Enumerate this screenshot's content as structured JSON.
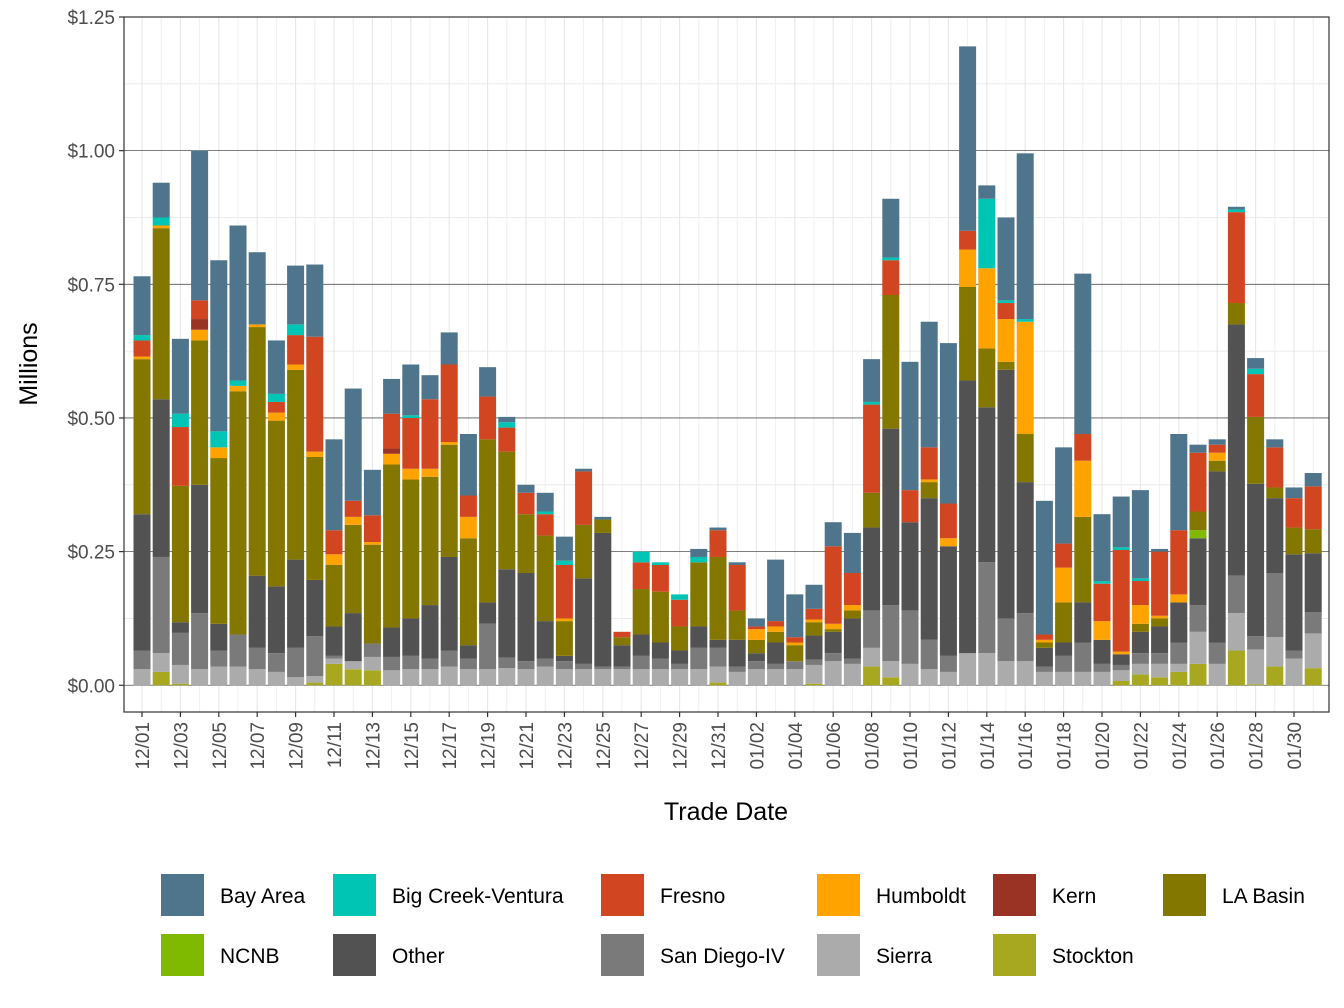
{
  "chart_data": {
    "type": "bar",
    "stacked": true,
    "title": "",
    "xlabel": "Trade Date",
    "ylabel": "Millions",
    "ylim": [
      -0.05,
      1.25
    ],
    "y_ticks": [
      0,
      0.25,
      0.5,
      0.75,
      1.0,
      1.25
    ],
    "y_tick_labels": [
      "$0.00",
      "$0.25",
      "$0.50",
      "$0.75",
      "$1.00",
      "$1.25"
    ],
    "x_tick_labels": [
      "12/01",
      "12/03",
      "12/05",
      "12/07",
      "12/09",
      "12/11",
      "12/13",
      "12/15",
      "12/17",
      "12/19",
      "12/21",
      "12/23",
      "12/25",
      "12/27",
      "12/29",
      "12/31",
      "01/02",
      "01/04",
      "01/06",
      "01/08",
      "01/10",
      "01/12",
      "01/14",
      "01/16",
      "01/18",
      "01/20",
      "01/22",
      "01/24",
      "01/26",
      "01/28",
      "01/30"
    ],
    "grid": true,
    "legend_position": "bottom",
    "categories": [
      "12/01",
      "12/02",
      "12/03",
      "12/04",
      "12/05",
      "12/06",
      "12/07",
      "12/08",
      "12/09",
      "12/10",
      "12/11",
      "12/12",
      "12/13",
      "12/14",
      "12/15",
      "12/16",
      "12/17",
      "12/18",
      "12/19",
      "12/20",
      "12/21",
      "12/22",
      "12/23",
      "12/24",
      "12/25",
      "12/26",
      "12/27",
      "12/28",
      "12/29",
      "12/30",
      "12/31",
      "01/01",
      "01/02",
      "01/03",
      "01/04",
      "01/05",
      "01/06",
      "01/07",
      "01/08",
      "01/09",
      "01/10",
      "01/11",
      "01/12",
      "01/13",
      "01/14",
      "01/15",
      "01/16",
      "01/17",
      "01/18",
      "01/19",
      "01/20",
      "01/21",
      "01/22",
      "01/23",
      "01/24",
      "01/25",
      "01/26",
      "01/27",
      "01/28",
      "01/29",
      "01/30",
      "01/31"
    ],
    "series": [
      {
        "name": "Stockton",
        "color": "#A8A820",
        "values": [
          0,
          0.025,
          0.003,
          0,
          0,
          0,
          0,
          0,
          0,
          0.005,
          0.04,
          0.03,
          0.028,
          0,
          0,
          0,
          0,
          0,
          0,
          0,
          0,
          0,
          0,
          0,
          0,
          0,
          0,
          0,
          0,
          0,
          0.005,
          0,
          0,
          0,
          0,
          0.003,
          0,
          0,
          0.035,
          0.015,
          0,
          0,
          0,
          0,
          0,
          0,
          0,
          0,
          0,
          0,
          0,
          0.008,
          0.02,
          0.015,
          0.025,
          0.04,
          0,
          0.065,
          0.002,
          0.035,
          0,
          0.032
        ]
      },
      {
        "name": "Sierra",
        "color": "#ABABAB",
        "values": [
          0.03,
          0.035,
          0.035,
          0.03,
          0.035,
          0.035,
          0.03,
          0.025,
          0.015,
          0.012,
          0.01,
          0.015,
          0.025,
          0.028,
          0.03,
          0.03,
          0.035,
          0.03,
          0.03,
          0.032,
          0.03,
          0.035,
          0.03,
          0.03,
          0.03,
          0.03,
          0.03,
          0.03,
          0.03,
          0.03,
          0.03,
          0.025,
          0.03,
          0.03,
          0.03,
          0.035,
          0.045,
          0.04,
          0.035,
          0.03,
          0.04,
          0.03,
          0.025,
          0.06,
          0.06,
          0.045,
          0.045,
          0.025,
          0.025,
          0.025,
          0.025,
          0.02,
          0.02,
          0.025,
          0.015,
          0.06,
          0.04,
          0.07,
          0.065,
          0.055,
          0.05,
          0.065
        ]
      },
      {
        "name": "San Diego-IV",
        "color": "#7A7A7A",
        "values": [
          0.035,
          0.18,
          0.06,
          0.105,
          0.03,
          0.06,
          0.04,
          0.035,
          0.055,
          0.075,
          0.005,
          0,
          0.025,
          0.025,
          0.025,
          0.02,
          0.03,
          0.02,
          0.085,
          0.02,
          0.015,
          0.015,
          0.015,
          0.01,
          0.005,
          0.005,
          0.025,
          0.02,
          0.01,
          0.04,
          0.035,
          0.01,
          0.015,
          0.01,
          0.015,
          0.01,
          0.015,
          0.01,
          0.07,
          0.105,
          0.1,
          0.055,
          0.03,
          0,
          0.17,
          0.08,
          0.09,
          0.01,
          0.03,
          0.055,
          0.015,
          0.01,
          0.02,
          0.02,
          0.04,
          0.05,
          0.04,
          0.07,
          0.025,
          0.12,
          0.015,
          0.04
        ]
      },
      {
        "name": "Other",
        "color": "#525252",
        "values": [
          0.255,
          0.295,
          0.02,
          0.24,
          0.05,
          0,
          0.135,
          0.125,
          0.165,
          0.105,
          0.055,
          0.09,
          0.0,
          0.055,
          0.07,
          0.1,
          0.175,
          0.025,
          0.04,
          0.165,
          0.165,
          0.07,
          0.01,
          0.16,
          0.25,
          0.04,
          0.04,
          0.03,
          0.025,
          0.04,
          0.015,
          0.05,
          0.015,
          0.04,
          0.0,
          0.045,
          0.04,
          0.075,
          0.155,
          0.33,
          0.165,
          0.265,
          0.205,
          0.51,
          0.29,
          0.465,
          0.245,
          0.035,
          0.025,
          0.075,
          0.045,
          0.02,
          0.04,
          0.05,
          0.075,
          0.125,
          0.32,
          0.47,
          0.285,
          0.14,
          0.18,
          0.11
        ]
      },
      {
        "name": "NCNB",
        "color": "#7FBA00",
        "values": [
          0,
          0,
          0,
          0,
          0,
          0,
          0,
          0,
          0,
          0,
          0,
          0,
          0,
          0,
          0,
          0,
          0,
          0,
          0,
          0,
          0,
          0,
          0,
          0,
          0,
          0,
          0,
          0,
          0,
          0,
          0,
          0,
          0,
          0,
          0,
          0,
          0,
          0,
          0,
          0,
          0,
          0,
          0,
          0,
          0,
          0,
          0,
          0,
          0,
          0,
          0,
          0,
          0,
          0,
          0,
          0.015,
          0,
          0,
          0,
          0,
          0,
          0
        ]
      },
      {
        "name": "LA Basin",
        "color": "#847700",
        "values": [
          0.29,
          0.32,
          0.255,
          0.27,
          0.31,
          0.455,
          0.465,
          0.31,
          0.355,
          0.23,
          0.115,
          0.165,
          0.185,
          0.305,
          0.26,
          0.24,
          0.21,
          0.2,
          0.305,
          0.22,
          0.11,
          0.16,
          0.065,
          0.1,
          0.025,
          0.015,
          0.085,
          0.095,
          0.045,
          0.12,
          0.155,
          0.055,
          0.025,
          0.02,
          0.03,
          0.025,
          0.005,
          0.015,
          0.065,
          0.25,
          0,
          0.03,
          0.0,
          0.175,
          0.11,
          0.015,
          0.09,
          0.01,
          0.075,
          0.16,
          0.0,
          0.0,
          0.015,
          0.015,
          0.0,
          0.035,
          0.02,
          0.04,
          0.125,
          0.02,
          0.05,
          0.045
        ]
      },
      {
        "name": "Humboldt",
        "color": "#FFA300",
        "values": [
          0.005,
          0.005,
          0,
          0.02,
          0.02,
          0.01,
          0.005,
          0.015,
          0.01,
          0.01,
          0.02,
          0.015,
          0.005,
          0.02,
          0.02,
          0.015,
          0.005,
          0.04,
          0,
          0,
          0,
          0,
          0.005,
          0,
          0,
          0,
          0,
          0,
          0,
          0,
          0,
          0,
          0.02,
          0.01,
          0.005,
          0.005,
          0.01,
          0.01,
          0,
          0,
          0,
          0.005,
          0.015,
          0.07,
          0.15,
          0.08,
          0.21,
          0.005,
          0.065,
          0.105,
          0.035,
          0.005,
          0.035,
          0.005,
          0.015,
          0,
          0.015,
          0,
          0,
          0,
          0,
          0
        ]
      },
      {
        "name": "Kern",
        "color": "#9A3324",
        "values": [
          0,
          0,
          0,
          0.02,
          0,
          0,
          0,
          0,
          0,
          0,
          0,
          0,
          0,
          0.01,
          0,
          0,
          0,
          0,
          0,
          0,
          0,
          0,
          0,
          0,
          0,
          0,
          0,
          0,
          0,
          0,
          0,
          0,
          0,
          0,
          0,
          0,
          0,
          0,
          0,
          0,
          0,
          0,
          0,
          0,
          0,
          0,
          0,
          0,
          0,
          0,
          0,
          0,
          0,
          0,
          0,
          0,
          0,
          0,
          0,
          0,
          0,
          0
        ]
      },
      {
        "name": "Fresno",
        "color": "#D14520",
        "values": [
          0.03,
          0,
          0.11,
          0.035,
          0,
          0,
          0,
          0.02,
          0.055,
          0.215,
          0.045,
          0.03,
          0.05,
          0.065,
          0.095,
          0.13,
          0.145,
          0.04,
          0.08,
          0.045,
          0.04,
          0.04,
          0.1,
          0.1,
          0.0,
          0.01,
          0.05,
          0.05,
          0.05,
          0,
          0.05,
          0.085,
          0.005,
          0.01,
          0.01,
          0.02,
          0.145,
          0.06,
          0.165,
          0.065,
          0.06,
          0.06,
          0.065,
          0.035,
          0,
          0.03,
          0,
          0.01,
          0.045,
          0.05,
          0.07,
          0.19,
          0.045,
          0.12,
          0.12,
          0.11,
          0.015,
          0.17,
          0.08,
          0.075,
          0.055,
          0.08
        ]
      },
      {
        "name": "Big Creek-Ventura",
        "color": "#00C5B5",
        "values": [
          0.01,
          0.015,
          0.025,
          0,
          0.03,
          0.01,
          0,
          0.015,
          0.02,
          0,
          0,
          0,
          0,
          0,
          0.005,
          0,
          0,
          0,
          0,
          0.01,
          0,
          0.005,
          0.008,
          0,
          0,
          0,
          0.02,
          0.005,
          0.01,
          0.01,
          0,
          0,
          0,
          0,
          0,
          0,
          0,
          0,
          0.005,
          0.005,
          0,
          0,
          0,
          0,
          0.13,
          0.005,
          0.005,
          0,
          0,
          0,
          0.005,
          0.005,
          0.005,
          0,
          0,
          0,
          0,
          0.005,
          0.01,
          0,
          0,
          0
        ]
      },
      {
        "name": "Bay Area",
        "color": "#4E758C",
        "values": [
          0.11,
          0.065,
          0.14,
          0.28,
          0.32,
          0.29,
          0.135,
          0.1,
          0.11,
          0.135,
          0.17,
          0.21,
          0.085,
          0.065,
          0.095,
          0.045,
          0.06,
          0.115,
          0.055,
          0.01,
          0.015,
          0.035,
          0.045,
          0.005,
          0.005,
          0.0,
          0,
          0,
          0,
          0.015,
          0.005,
          0.005,
          0.015,
          0.115,
          0.08,
          0.045,
          0.045,
          0.075,
          0.08,
          0.11,
          0.24,
          0.235,
          0.3,
          0.345,
          0.025,
          0.155,
          0.31,
          0.25,
          0.18,
          0.3,
          0.125,
          0.095,
          0.165,
          0.005,
          0.18,
          0.015,
          0.01,
          0.005,
          0.02,
          0.015,
          0.02,
          0.025
        ]
      }
    ],
    "legend_order": [
      "Bay Area",
      "Big Creek-Ventura",
      "Fresno",
      "Humboldt",
      "Kern",
      "LA Basin",
      "NCNB",
      "Other",
      "San Diego-IV",
      "Sierra",
      "Stockton"
    ]
  }
}
